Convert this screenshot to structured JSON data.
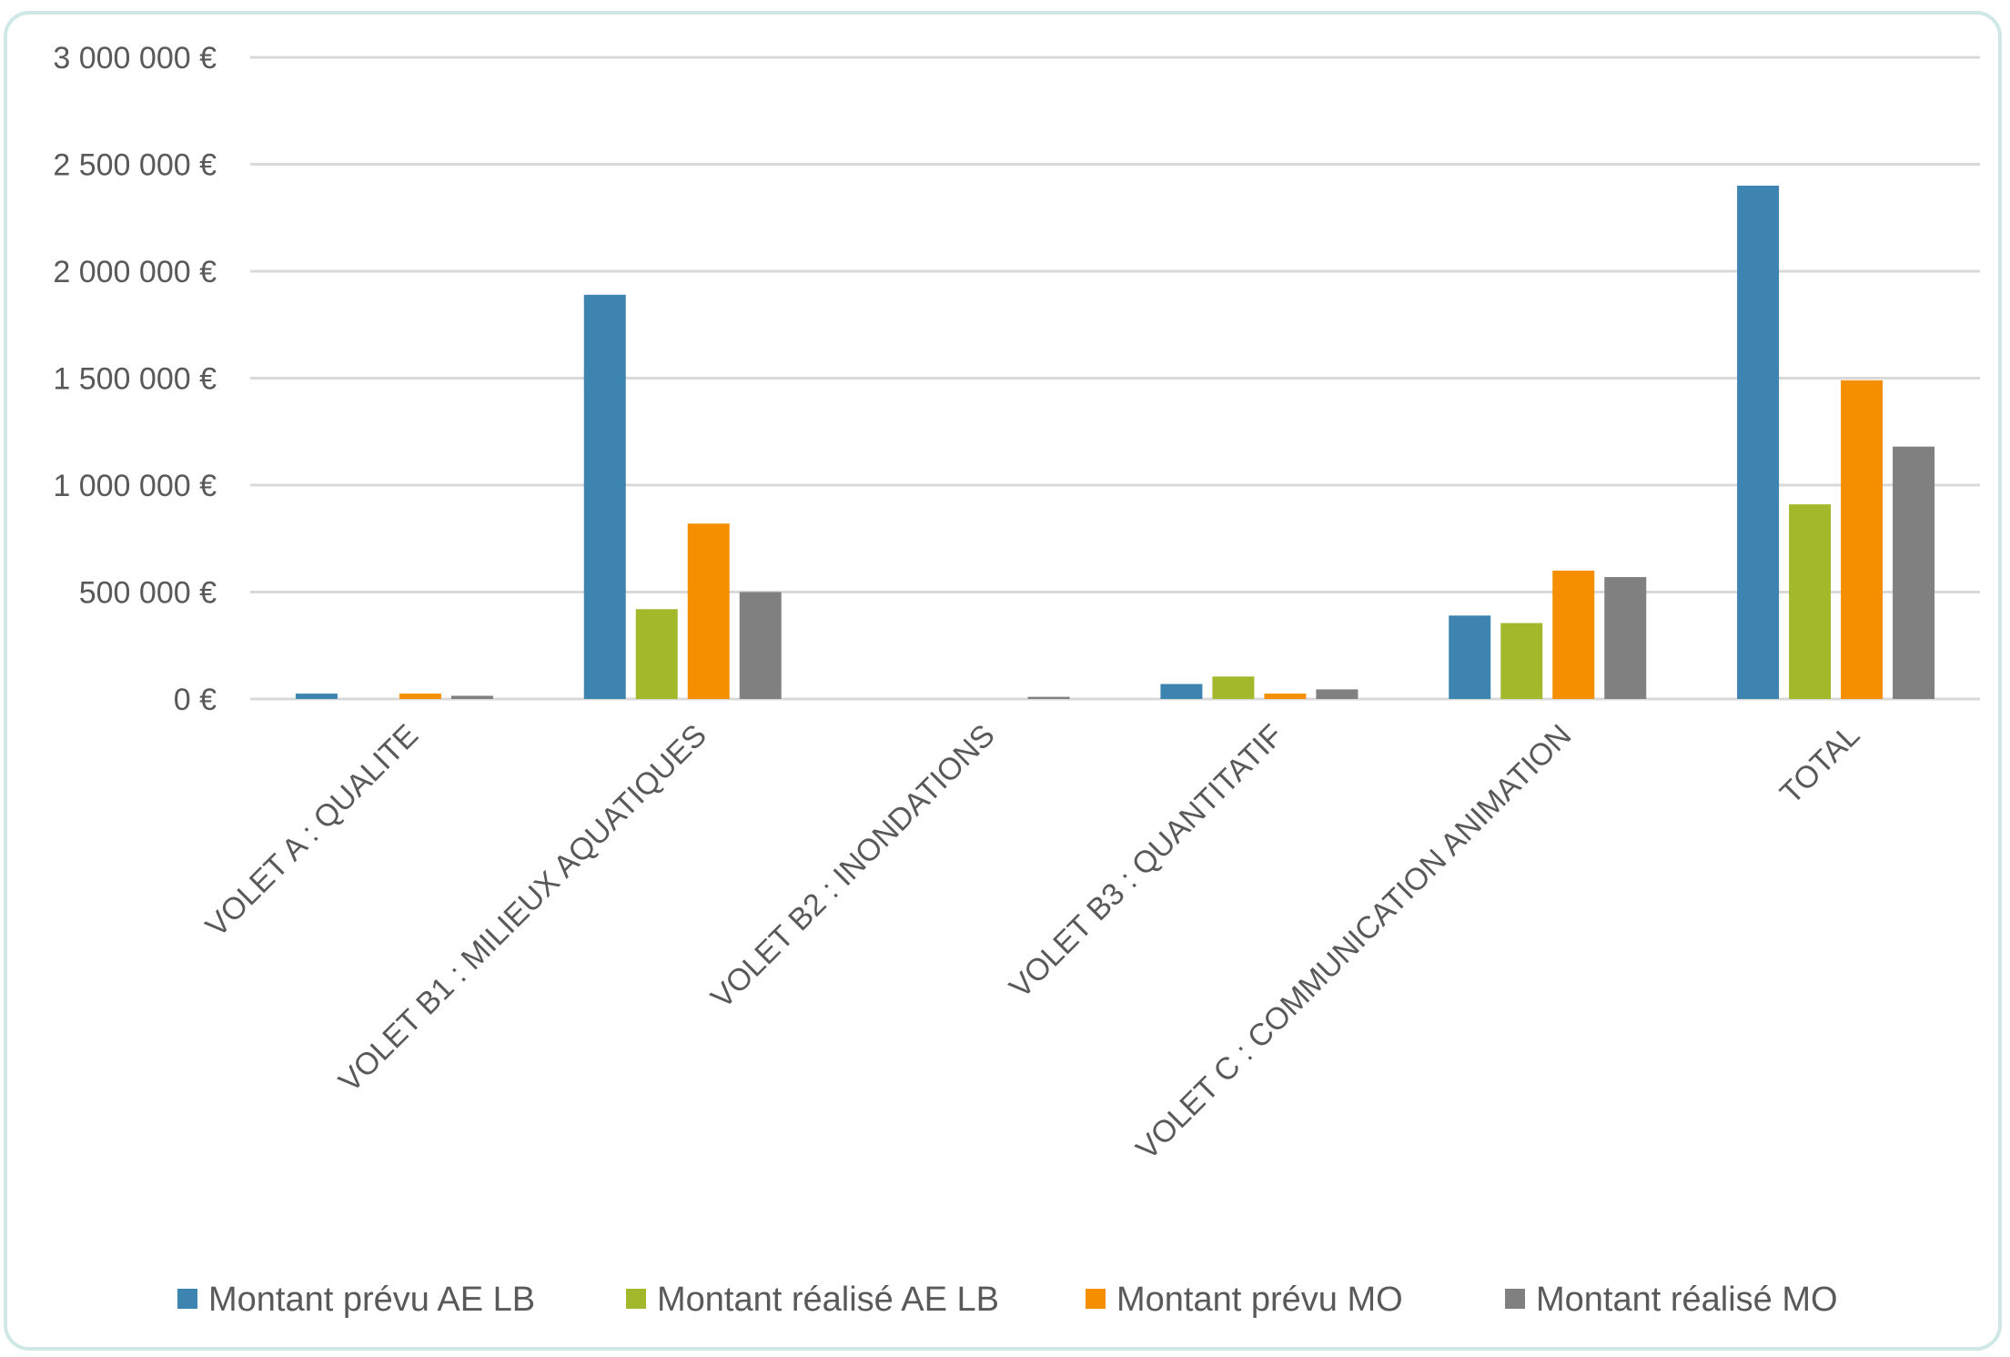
{
  "chart_data": {
    "type": "bar",
    "categories": [
      "VOLET A : QUALITE",
      "VOLET B1 : MILIEUX AQUATIQUES",
      "VOLET B2 : INONDATIONS",
      "VOLET B3 : QUANTITATIF",
      "VOLET C : COMMUNICATION ANIMATION",
      "TOTAL"
    ],
    "series": [
      {
        "name": "Montant prévu AE LB",
        "color": "#3d85b0",
        "values": [
          25000,
          1890000,
          0,
          70000,
          390000,
          2400000
        ]
      },
      {
        "name": "Montant réalisé AE LB",
        "color": "#a4b82b",
        "values": [
          0,
          420000,
          0,
          105000,
          355000,
          910000
        ]
      },
      {
        "name": "Montant prévu MO",
        "color": "#f58f00",
        "values": [
          25000,
          820000,
          0,
          25000,
          600000,
          1490000
        ]
      },
      {
        "name": "Montant réalisé MO",
        "color": "#808080",
        "values": [
          15000,
          500000,
          10000,
          45000,
          570000,
          1180000
        ]
      }
    ],
    "ylim": [
      0,
      3000000
    ],
    "yticks": [
      0,
      500000,
      1000000,
      1500000,
      2000000,
      2500000,
      3000000
    ],
    "ytick_labels": [
      "0 €",
      "500 000 €",
      "1 000 000 €",
      "1 500 000 €",
      "2 000 000 €",
      "2 500 000 €",
      "3 000 000 €"
    ],
    "grid": true,
    "legend_position": "bottom",
    "title": "",
    "xlabel": "",
    "ylabel": ""
  }
}
